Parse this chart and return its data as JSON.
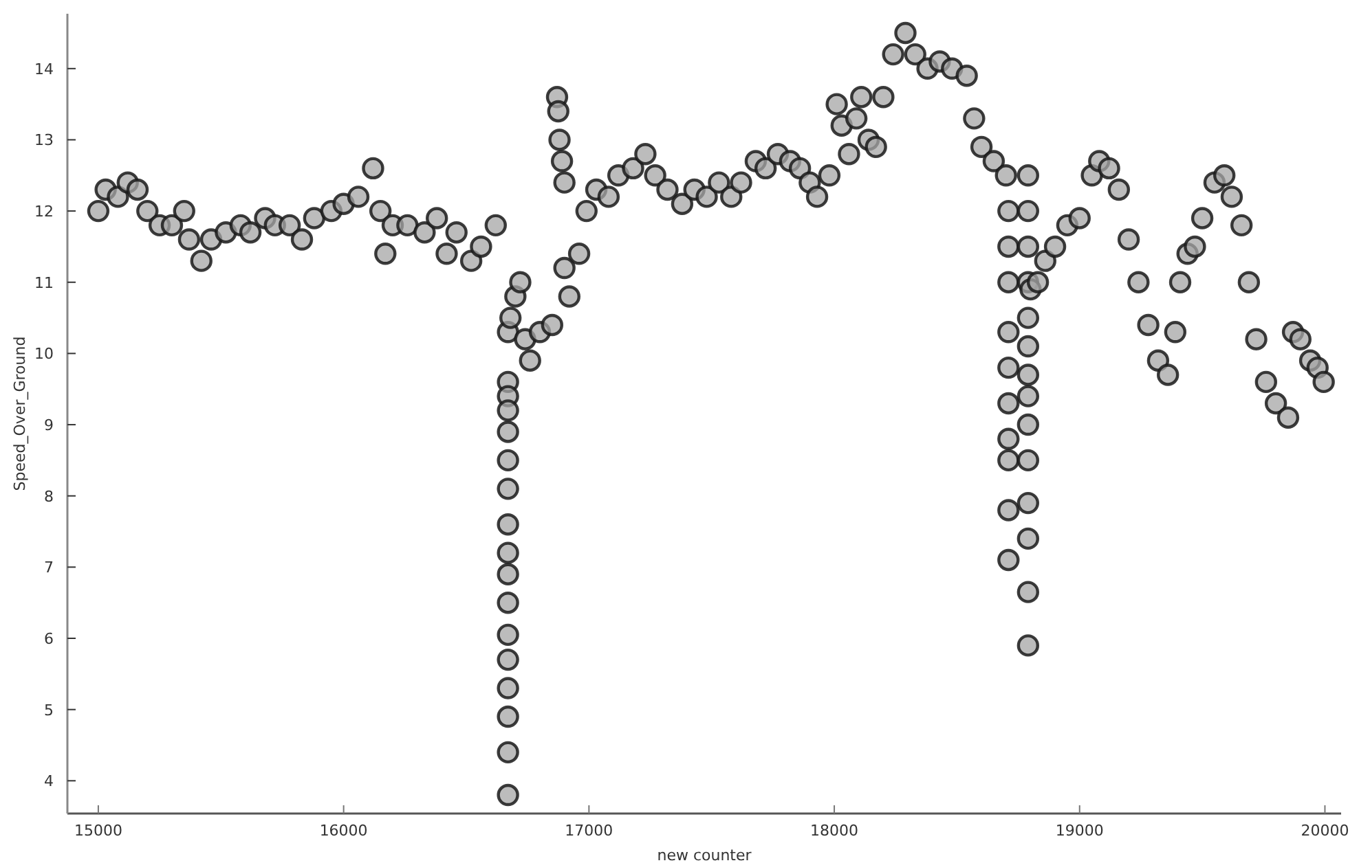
{
  "chart_data": {
    "type": "scatter",
    "xlabel": "new counter",
    "ylabel": "Speed_Over_Ground",
    "xlim": [
      14874,
      20066
    ],
    "ylim": [
      3.54,
      14.77
    ],
    "xticks": [
      15000,
      16000,
      17000,
      18000,
      19000,
      20000
    ],
    "yticks": [
      4,
      5,
      6,
      7,
      8,
      9,
      10,
      11,
      12,
      13,
      14
    ],
    "grid": false,
    "marker": "circle",
    "series": [
      {
        "color": "#a6a6a6",
        "x": [
          15000,
          15030,
          15080,
          15120,
          15160,
          15200,
          15250,
          15300,
          15350,
          15370,
          15420,
          15460,
          15520,
          15580,
          15620,
          15680,
          15720,
          15780,
          15830,
          15880,
          15950,
          16000,
          16060,
          16120,
          16150,
          16170,
          16200,
          16260,
          16330,
          16380,
          16420,
          16460,
          16520,
          16560,
          16620,
          16670,
          16670,
          16670,
          16670,
          16670,
          16670,
          16670,
          16670,
          16670,
          16670,
          16670,
          16670,
          16670,
          16670,
          16670,
          16670,
          16670,
          16680,
          16700,
          16720,
          16740,
          16760,
          16800,
          16850,
          16870,
          16875,
          16880,
          16890,
          16900,
          16900,
          16920,
          16960,
          16990,
          17030,
          17080,
          17120,
          17180,
          17230,
          17270,
          17320,
          17380,
          17430,
          17480,
          17530,
          17580,
          17620,
          17680,
          17720,
          17770,
          17820,
          17860,
          17900,
          17930,
          17980,
          18010,
          18030,
          18060,
          18090,
          18110,
          18140,
          18170,
          18200,
          18240,
          18290,
          18330,
          18380,
          18430,
          18480,
          18540,
          18570,
          18600,
          18650,
          18700,
          18710,
          18710,
          18710,
          18710,
          18710,
          18710,
          18710,
          18710,
          18710,
          18710,
          18790,
          18790,
          18790,
          18790,
          18790,
          18790,
          18790,
          18790,
          18790,
          18790,
          18790,
          18790,
          18790,
          18790,
          18800,
          18830,
          18860,
          18900,
          18950,
          19000,
          19050,
          19080,
          19120,
          19160,
          19200,
          19240,
          19280,
          19320,
          19360,
          19390,
          19410,
          19440,
          19470,
          19500,
          19550,
          19590,
          19620,
          19660,
          19690,
          19720,
          19760,
          19800,
          19850,
          19870,
          19900,
          19940,
          19970,
          19995
        ],
        "values": [
          12.0,
          12.3,
          12.2,
          12.4,
          12.3,
          12.0,
          11.8,
          11.8,
          12.0,
          11.6,
          11.3,
          11.6,
          11.7,
          11.8,
          11.7,
          11.9,
          11.8,
          11.8,
          11.6,
          11.9,
          12.0,
          12.1,
          12.2,
          12.6,
          12.0,
          11.4,
          11.8,
          11.8,
          11.7,
          11.9,
          11.4,
          11.7,
          11.3,
          11.5,
          11.8,
          10.3,
          9.6,
          9.4,
          9.2,
          8.9,
          8.5,
          8.1,
          7.6,
          7.2,
          6.9,
          6.5,
          6.05,
          5.7,
          5.3,
          4.9,
          4.4,
          3.8,
          10.5,
          10.8,
          11.0,
          10.2,
          9.9,
          10.3,
          10.4,
          13.6,
          13.4,
          13.0,
          12.7,
          12.4,
          11.2,
          10.8,
          11.4,
          12.0,
          12.3,
          12.2,
          12.5,
          12.6,
          12.8,
          12.5,
          12.3,
          12.1,
          12.3,
          12.2,
          12.4,
          12.2,
          12.4,
          12.7,
          12.6,
          12.8,
          12.7,
          12.6,
          12.4,
          12.2,
          12.5,
          13.5,
          13.2,
          12.8,
          13.3,
          13.6,
          13.0,
          12.9,
          13.6,
          14.2,
          14.5,
          14.2,
          14.0,
          14.1,
          14.0,
          13.9,
          13.3,
          12.9,
          12.7,
          12.5,
          12.0,
          11.5,
          11.0,
          10.3,
          9.8,
          9.3,
          8.8,
          8.5,
          7.8,
          7.1,
          12.5,
          12.0,
          11.5,
          11.0,
          10.5,
          10.1,
          9.7,
          9.4,
          9.0,
          8.5,
          7.9,
          7.4,
          6.65,
          5.9,
          10.9,
          11.0,
          11.3,
          11.5,
          11.8,
          11.9,
          12.5,
          12.7,
          12.6,
          12.3,
          11.6,
          11.0,
          10.4,
          9.9,
          9.7,
          10.3,
          11.0,
          11.4,
          11.5,
          11.9,
          12.4,
          12.5,
          12.2,
          11.8,
          11.0,
          10.2,
          9.6,
          9.3,
          9.1,
          10.3,
          10.2,
          9.9,
          9.8,
          9.6
        ]
      }
    ]
  }
}
